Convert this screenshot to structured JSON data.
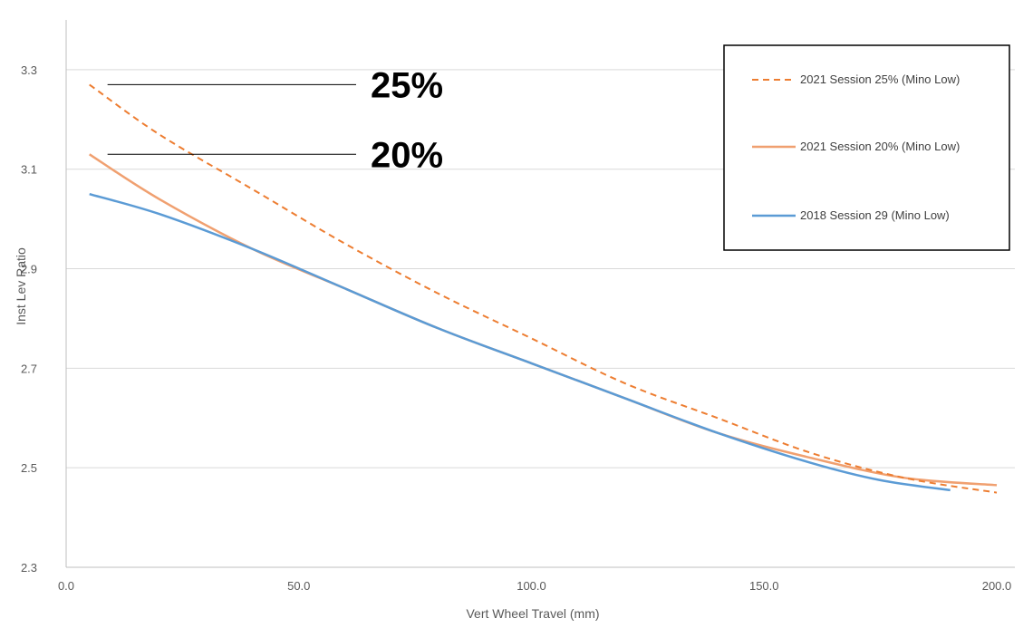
{
  "colors": {
    "session25": "#ED7D31",
    "session20": "#F0A070",
    "session2018": "#5B9BD5",
    "grid": "#D9D9D9",
    "axis": "#BFBFBF",
    "callout_line": "#000000"
  },
  "chart_data": {
    "type": "line",
    "title": "",
    "xlabel": "Vert Wheel Travel (mm)",
    "ylabel": "Inst Lev Ratio",
    "xlim": [
      0,
      200
    ],
    "ylim": [
      2.3,
      3.4
    ],
    "xticks": [
      0,
      50,
      100,
      150,
      200
    ],
    "xtick_labels": [
      "0.0",
      "50.0",
      "100.0",
      "150.0",
      "200.0"
    ],
    "yticks": [
      2.3,
      2.5,
      2.7,
      2.9,
      3.1,
      3.3
    ],
    "ytick_labels": [
      "2.3",
      "2.5",
      "2.7",
      "2.9",
      "3.1",
      "3.3"
    ],
    "grid": true,
    "legend_position": "top-right",
    "series": [
      {
        "name": "2021 Session 25% (Mino Low)",
        "style": "dashed",
        "color_key": "session25",
        "x": [
          5,
          20,
          40,
          60,
          80,
          100,
          120,
          140,
          160,
          180,
          200
        ],
        "y": [
          3.27,
          3.17,
          3.06,
          2.95,
          2.85,
          2.76,
          2.67,
          2.6,
          2.53,
          2.48,
          2.45
        ]
      },
      {
        "name": "2021 Session 20% (Mino Low)",
        "style": "solid",
        "color_key": "session20",
        "x": [
          5,
          20,
          40,
          60,
          80,
          100,
          120,
          140,
          160,
          180,
          200
        ],
        "y": [
          3.13,
          3.04,
          2.94,
          2.86,
          2.78,
          2.71,
          2.64,
          2.57,
          2.52,
          2.48,
          2.465
        ]
      },
      {
        "name": "2018 Session 29 (Mino Low)",
        "style": "solid",
        "color_key": "session2018",
        "x": [
          5,
          20,
          40,
          60,
          80,
          100,
          120,
          140,
          160,
          175,
          190
        ],
        "y": [
          3.05,
          3.01,
          2.94,
          2.86,
          2.78,
          2.71,
          2.64,
          2.57,
          2.51,
          2.475,
          2.455
        ]
      }
    ],
    "annotations": [
      {
        "label": "25%",
        "y": 3.27,
        "x_from": 5,
        "x_to": 62
      },
      {
        "label": "20%",
        "y": 3.13,
        "x_from": 5,
        "x_to": 62
      }
    ]
  }
}
